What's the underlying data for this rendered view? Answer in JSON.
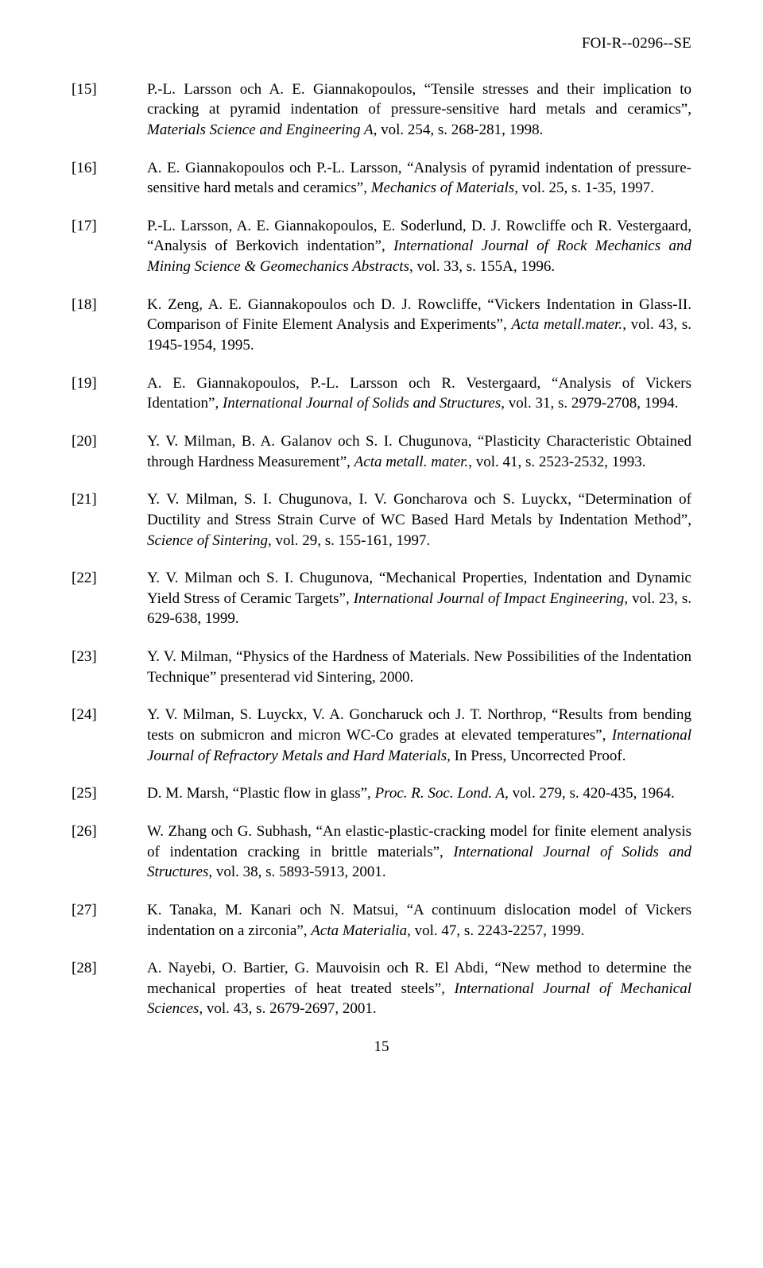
{
  "header": "FOI-R--0296--SE",
  "page_number": "15",
  "references": [
    {
      "num": "[15]",
      "text": "P.-L. Larsson och A. E. Giannakopoulos, \"Tensile stresses and their implication to cracking at pyramid indentation of pressure-sensitive hard metals and ceramics\", Materials Science and Engineering A, vol. 254, s. 268-281, 1998.",
      "italic_ranges": [
        [
          "Materials Science and Engineering A"
        ]
      ]
    },
    {
      "num": "[16]",
      "text": "A. E. Giannakopoulos och P.-L. Larsson, \"Analysis of pyramid indentation of pressure-sensitive hard metals and ceramics\", Mechanics of Materials, vol. 25, s. 1-35, 1997.",
      "italic_ranges": [
        [
          "Mechanics of Materials"
        ]
      ]
    },
    {
      "num": "[17]",
      "text": "P.-L. Larsson, A. E. Giannakopoulos, E. Soderlund, D. J. Rowcliffe och R. Vestergaard, \"Analysis of Berkovich indentation\", International Journal of Rock Mechanics and Mining Science & Geomechanics Abstracts, vol. 33, s. 155A, 1996.",
      "italic_ranges": [
        [
          "International Journal of Rock Mechanics and Mining Science & Geomechanics Abstracts"
        ]
      ]
    },
    {
      "num": "[18]",
      "text": "K. Zeng, A. E. Giannakopoulos och D. J. Rowcliffe, \"Vickers Indentation in Glass-II. Comparison of Finite Element Analysis and Experiments\", Acta metall.mater., vol. 43, s. 1945-1954, 1995.",
      "italic_ranges": [
        [
          "Acta metall.mater."
        ]
      ]
    },
    {
      "num": "[19]",
      "text": "A. E. Giannakopoulos, P.-L. Larsson och R. Vestergaard, \"Analysis of Vickers Identation\", International Journal of Solids and Structures, vol. 31, s. 2979-2708, 1994.",
      "italic_ranges": [
        [
          "International Journal of Solids and Structures"
        ]
      ]
    },
    {
      "num": "[20]",
      "text": "Y. V. Milman, B. A. Galanov och S. I. Chugunova, \"Plasticity Characteristic Obtained through Hardness Measurement\", Acta metall. mater., vol. 41, s. 2523-2532, 1993.",
      "italic_ranges": [
        [
          "Acta metall. mater."
        ]
      ]
    },
    {
      "num": "[21]",
      "text": "Y. V. Milman, S. I. Chugunova, I. V. Goncharova och S. Luyckx, \"Determination of Ductility and Stress Strain Curve of WC Based Hard Metals by Indentation Method\", Science of Sintering, vol. 29, s. 155-161, 1997.",
      "italic_ranges": [
        [
          "Science of Sintering"
        ]
      ]
    },
    {
      "num": "[22]",
      "text": "Y. V. Milman och S. I. Chugunova, \"Mechanical Properties, Indentation and Dynamic Yield Stress of Ceramic Targets\", International Journal of Impact Engineering, vol. 23, s. 629-638, 1999.",
      "italic_ranges": [
        [
          "International Journal of Impact Engineering"
        ]
      ]
    },
    {
      "num": "[23]",
      "text": "Y. V. Milman, \"Physics of the Hardness of Materials. New Possibilities of the Indentation Technique\" presenterad vid Sintering, 2000.",
      "italic_ranges": []
    },
    {
      "num": "[24]",
      "text": "Y. V. Milman, S. Luyckx, V. A. Goncharuck och J. T. Northrop, \"Results from bending tests on submicron and micron WC-Co grades at elevated temperatures\", International Journal of Refractory Metals and Hard Materials, In Press, Uncorrected Proof.",
      "italic_ranges": [
        [
          "International Journal of Refractory Metals and Hard Materials"
        ]
      ]
    },
    {
      "num": "[25]",
      "text": "D. M. Marsh, \"Plastic flow in glass\", Proc. R. Soc. Lond. A, vol. 279, s. 420-435, 1964.",
      "italic_ranges": [
        [
          "Proc. R. Soc. Lond. A"
        ]
      ]
    },
    {
      "num": "[26]",
      "text": "W. Zhang och G. Subhash, \"An elastic-plastic-cracking model for finite element analysis of indentation cracking in brittle materials\", International Journal of Solids and Structures, vol. 38, s. 5893-5913, 2001.",
      "italic_ranges": [
        [
          "International Journal of Solids and Structures"
        ]
      ]
    },
    {
      "num": "[27]",
      "text": "K. Tanaka, M. Kanari och N. Matsui, \"A continuum dislocation model of Vickers indentation on a zirconia\", Acta Materialia, vol. 47, s. 2243-2257, 1999.",
      "italic_ranges": [
        [
          "Acta Materialia"
        ]
      ]
    },
    {
      "num": "[28]",
      "text": "A. Nayebi, O. Bartier, G. Mauvoisin och R. El Abdi, \"New method to determine the mechanical properties of heat treated steels\", International Journal of Mechanical Sciences, vol. 43, s. 2679-2697, 2001.",
      "italic_ranges": [
        [
          "International Journal of Mechanical Sciences"
        ]
      ]
    }
  ]
}
